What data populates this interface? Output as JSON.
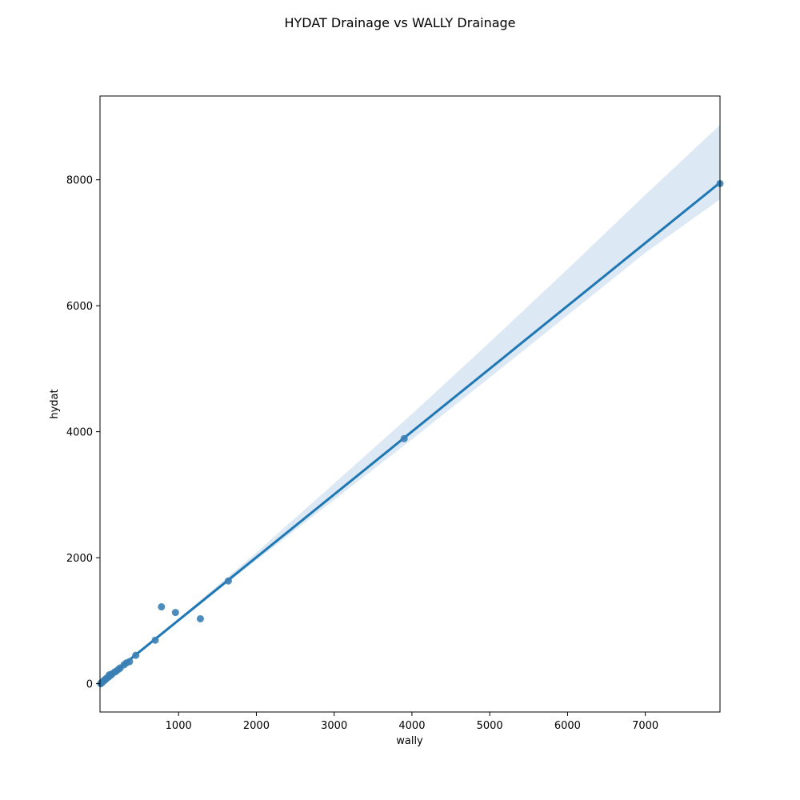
{
  "chart_data": {
    "type": "scatter",
    "title": "HYDAT Drainage vs WALLY Drainage",
    "xlabel": "wally",
    "ylabel": "hydat",
    "xlim": [
      -10,
      7960
    ],
    "ylim": [
      -450,
      9330
    ],
    "xticks": [
      1000,
      2000,
      3000,
      4000,
      5000,
      6000,
      7000
    ],
    "yticks": [
      0,
      2000,
      4000,
      6000,
      8000
    ],
    "grid": false,
    "colors": {
      "points": "#3a7fb5",
      "line": "#1f77b4",
      "band": "#dce8f3"
    },
    "points": [
      {
        "x": 0,
        "y": 0
      },
      {
        "x": 5,
        "y": 10
      },
      {
        "x": 10,
        "y": 15
      },
      {
        "x": 15,
        "y": 20
      },
      {
        "x": 20,
        "y": 25
      },
      {
        "x": 25,
        "y": 30
      },
      {
        "x": 30,
        "y": 35
      },
      {
        "x": 40,
        "y": 45
      },
      {
        "x": 50,
        "y": 60
      },
      {
        "x": 60,
        "y": 65
      },
      {
        "x": 70,
        "y": 80
      },
      {
        "x": 80,
        "y": 90
      },
      {
        "x": 100,
        "y": 105
      },
      {
        "x": 110,
        "y": 140
      },
      {
        "x": 130,
        "y": 135
      },
      {
        "x": 150,
        "y": 160
      },
      {
        "x": 180,
        "y": 185
      },
      {
        "x": 200,
        "y": 200
      },
      {
        "x": 230,
        "y": 230
      },
      {
        "x": 250,
        "y": 250
      },
      {
        "x": 300,
        "y": 300
      },
      {
        "x": 330,
        "y": 330
      },
      {
        "x": 370,
        "y": 350
      },
      {
        "x": 450,
        "y": 450
      },
      {
        "x": 700,
        "y": 690
      },
      {
        "x": 780,
        "y": 1220
      },
      {
        "x": 960,
        "y": 1130
      },
      {
        "x": 1280,
        "y": 1030
      },
      {
        "x": 1640,
        "y": 1630
      },
      {
        "x": 3900,
        "y": 3890
      },
      {
        "x": 7960,
        "y": 7940
      }
    ],
    "regression": {
      "slope": 0.998,
      "intercept": 10
    },
    "confidence_band": {
      "x": [
        0,
        1000,
        2000,
        3000,
        4000,
        5000,
        6000,
        7000,
        7960
      ],
      "lower": [
        -20,
        980,
        1960,
        2920,
        3880,
        4860,
        5850,
        6840,
        7690
      ],
      "upper": [
        40,
        1030,
        2080,
        3180,
        4280,
        5420,
        6580,
        7760,
        8870
      ]
    }
  }
}
